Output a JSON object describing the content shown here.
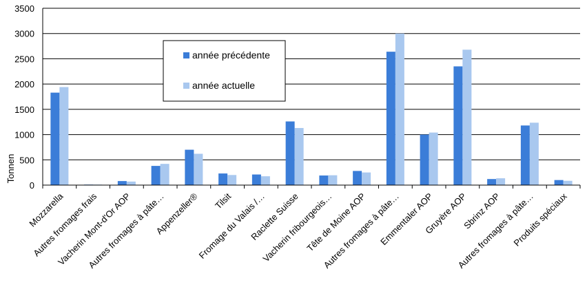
{
  "chart_data": {
    "type": "bar",
    "title": "",
    "xlabel": "",
    "ylabel": "Tonnen",
    "ylim": [
      0,
      3500
    ],
    "yticks": [
      0,
      500,
      1000,
      1500,
      2000,
      2500,
      3000,
      3500
    ],
    "grid": true,
    "legend_position": "top-center",
    "categories": [
      "Mozzarella",
      "Autres fromages frais",
      "Vacherin Mont-d'Or AOP",
      "Autres fromages à pâte…",
      "Appenzeller®",
      "Tilsit",
      "Fromage du Valais /…",
      "Raclette Suisse",
      "Vacherin fribourgeois…",
      "Tête de Moine AOP",
      "Autres fromages à pâte…",
      "Emmentaler AOP",
      "Gruyère AOP",
      "Sbrinz AOP",
      "Autres fromages à pâte…",
      "Produits spéciaux"
    ],
    "series": [
      {
        "name": "année précédente",
        "color": "#3b7dd8",
        "values": [
          1830,
          10,
          80,
          380,
          700,
          230,
          210,
          1260,
          190,
          280,
          2640,
          1000,
          2350,
          120,
          1180,
          100
        ]
      },
      {
        "name": "année actuelle",
        "color": "#a9c8ef",
        "values": [
          1940,
          10,
          70,
          420,
          620,
          200,
          175,
          1130,
          195,
          250,
          3000,
          1040,
          2680,
          135,
          1235,
          85
        ]
      }
    ]
  }
}
